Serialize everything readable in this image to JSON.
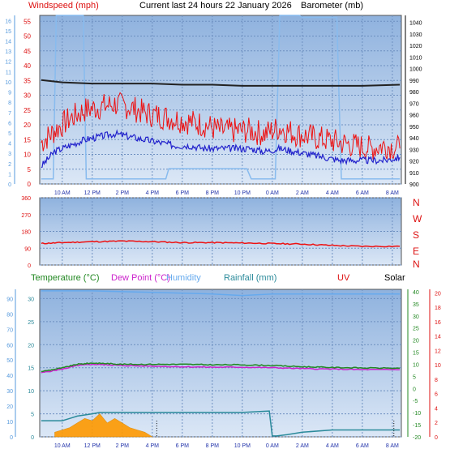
{
  "header": {
    "windspeed_label": "Windspeed (mph)",
    "title": "Current last 24 hours 22 January 2026",
    "barometer_label": "Barometer (mb)"
  },
  "legend": {
    "temperature": "Temperature (°C)",
    "dew_point": "Dew Point (°C)",
    "humidity": "Humidity",
    "rainfall": "Rainfall (mm)",
    "uv": "UV",
    "solar": "Solar"
  },
  "colors": {
    "wind_gust": "#ee1111",
    "wind_avg": "#2222cc",
    "barometer": "#222222",
    "direction": "#ee1111",
    "temperature": "#228822",
    "dew_point": "#cc22cc",
    "humidity": "#66aaee",
    "rainfall": "#2a8a9a",
    "solar": "#ff9900",
    "light_blue": "#88bbee"
  },
  "chart_data": [
    {
      "type": "line",
      "name": "wind-barometer",
      "x_ticks": [
        "10 AM",
        "12 PM",
        "2 PM",
        "4 PM",
        "6 PM",
        "8 PM",
        "10 PM",
        "0 AM",
        "2 AM",
        "4 AM",
        "6 AM",
        "8 AM"
      ],
      "x_range_hours": [
        8.5,
        32.6
      ],
      "left_axis": {
        "label": "Windspeed (mph)",
        "ticks": [
          0,
          5,
          10,
          15,
          20,
          25,
          30,
          35,
          40,
          45,
          50,
          55
        ],
        "ylim": [
          0,
          57
        ]
      },
      "outer_left_axis": {
        "ticks": [
          0,
          1,
          2,
          3,
          4,
          5,
          6,
          7,
          8,
          9,
          10,
          11,
          12,
          13,
          14,
          15,
          16
        ]
      },
      "right_axis": {
        "label": "Barometer (mb)",
        "ticks": [
          900,
          910,
          920,
          930,
          940,
          950,
          960,
          970,
          980,
          990,
          1000,
          1010,
          1020,
          1030,
          1040
        ],
        "ylim": [
          900,
          1046
        ]
      },
      "series": [
        {
          "name": "gust",
          "x": [
            8.6,
            9.5,
            10.5,
            11.5,
            12.5,
            13.5,
            14.5,
            15.5,
            16.5,
            17.5,
            18.5,
            19.5,
            20.5,
            21.5,
            22.5,
            23.5,
            24.5,
            25.5,
            26.5,
            27.5,
            28.5,
            29.5,
            30.5,
            31.5,
            32.5
          ],
          "y": [
            14,
            18,
            22,
            25,
            26,
            27,
            26,
            24,
            23,
            22,
            21,
            20,
            18,
            18,
            18,
            17,
            19,
            17,
            16,
            15,
            14,
            13,
            12,
            13,
            12
          ]
        },
        {
          "name": "average",
          "x": [
            8.6,
            9.5,
            10.5,
            11.5,
            12.5,
            13.5,
            14.5,
            15.5,
            16.5,
            17.5,
            18.5,
            19.5,
            20.5,
            21.5,
            22.5,
            23.5,
            24.5,
            25.5,
            26.5,
            27.5,
            28.5,
            29.5,
            30.5,
            31.5,
            32.5
          ],
          "y": [
            6,
            11,
            13,
            15,
            16,
            17,
            16,
            15,
            14,
            13,
            13,
            12,
            12,
            12,
            12,
            11,
            12,
            11,
            10,
            9,
            8,
            8,
            8,
            8,
            9
          ]
        },
        {
          "name": "barometer",
          "x": [
            8.6,
            10,
            12,
            14,
            16,
            18,
            20,
            22,
            24,
            26,
            28,
            30,
            32.5
          ],
          "y": [
            990,
            988,
            987,
            987,
            987,
            986,
            986,
            985,
            985,
            985,
            985,
            985,
            986
          ]
        },
        {
          "name": "light_blue",
          "x": [
            8.6,
            9.4,
            9.6,
            11.4,
            11.6,
            16.9,
            17.1,
            22.3,
            22.6,
            24.2,
            24.5,
            25.8,
            26,
            28.3,
            28.6,
            32.5
          ],
          "y": [
            0.5,
            0.5,
            16.5,
            16.5,
            0.5,
            0.5,
            1.5,
            1.5,
            0.5,
            0.5,
            16.5,
            16.5,
            16.3,
            16.3,
            0.5,
            0.5
          ]
        }
      ]
    },
    {
      "type": "line",
      "name": "wind-direction",
      "left_axis": {
        "ticks": [
          0,
          90,
          180,
          270,
          360
        ],
        "ylim": [
          0,
          360
        ]
      },
      "right_labels": [
        "N",
        "W",
        "S",
        "E",
        "N"
      ],
      "series": [
        {
          "name": "direction",
          "x": [
            8.6,
            10,
            12,
            14,
            16,
            18,
            20,
            22,
            24,
            26,
            28,
            30,
            32.5
          ],
          "y": [
            115,
            120,
            125,
            128,
            125,
            120,
            120,
            118,
            115,
            112,
            105,
            100,
            100
          ]
        }
      ]
    },
    {
      "type": "line",
      "name": "temperature-humidity-rain",
      "left_axis": {
        "label": "Humidity",
        "ticks": [
          0,
          10,
          20,
          30,
          40,
          50,
          60,
          70,
          80,
          90
        ],
        "ylim": [
          0,
          96
        ]
      },
      "inner_left_axis": {
        "label": "Rainfall (mm)",
        "ticks": [
          0,
          5,
          10,
          15,
          20,
          25,
          30
        ],
        "ylim": [
          0,
          32
        ]
      },
      "right_axis": {
        "label": "Temperature (°C)",
        "ticks": [
          -20,
          -15,
          -10,
          -5,
          0,
          5,
          10,
          15,
          20,
          25,
          30,
          35,
          40
        ],
        "ylim": [
          -20,
          41
        ]
      },
      "outer_right_axis": {
        "label": "UV",
        "ticks": [
          0,
          2,
          4,
          6,
          8,
          10,
          12,
          14,
          16,
          18,
          20
        ],
        "ylim": [
          0,
          20.5
        ]
      },
      "series": [
        {
          "name": "Temperature (°C)",
          "x": [
            8.6,
            10,
            11,
            12,
            13,
            14,
            16,
            18,
            20,
            22,
            24,
            26,
            28,
            30,
            32.5
          ],
          "y": [
            7,
            8.5,
            10,
            10.5,
            10.3,
            10,
            10,
            10,
            9.8,
            9.8,
            9.5,
            9,
            8.7,
            8.5,
            8.4
          ]
        },
        {
          "name": "Dew Point (°C)",
          "x": [
            8.6,
            10,
            11,
            12,
            13,
            14,
            16,
            18,
            20,
            22,
            24,
            26,
            28,
            30,
            32.5
          ],
          "y": [
            6.5,
            8,
            9.5,
            10,
            9.8,
            9.5,
            9.2,
            9,
            8.8,
            8.8,
            8.6,
            8.2,
            8,
            7.8,
            7.8
          ]
        },
        {
          "name": "Humidity",
          "x": [
            8.6,
            12,
            16,
            20,
            22,
            24,
            26,
            28,
            32.5
          ],
          "y": [
            95,
            95,
            94,
            93,
            92,
            93,
            93,
            93,
            93
          ]
        },
        {
          "name": "Rainfall (mm)",
          "x": [
            8.6,
            10,
            10.5,
            11,
            12,
            12.5,
            14,
            16,
            18,
            20,
            22,
            23.8,
            24,
            24.3,
            25,
            26,
            28,
            32.5
          ],
          "y": [
            3.5,
            3.5,
            4,
            4.5,
            5,
            5.3,
            5.3,
            5.3,
            5.3,
            5.3,
            5.3,
            5.6,
            0.2,
            0.2,
            0.5,
            1,
            1.5,
            1.5
          ]
        },
        {
          "name": "Solar",
          "x": [
            9.5,
            10.5,
            11,
            11.5,
            12,
            12.5,
            13,
            13.5,
            14,
            14.5,
            15,
            15.5,
            16
          ],
          "y": [
            1,
            2,
            3,
            4,
            3.5,
            5,
            3,
            4,
            3,
            2,
            1.5,
            1,
            0
          ]
        }
      ]
    }
  ]
}
